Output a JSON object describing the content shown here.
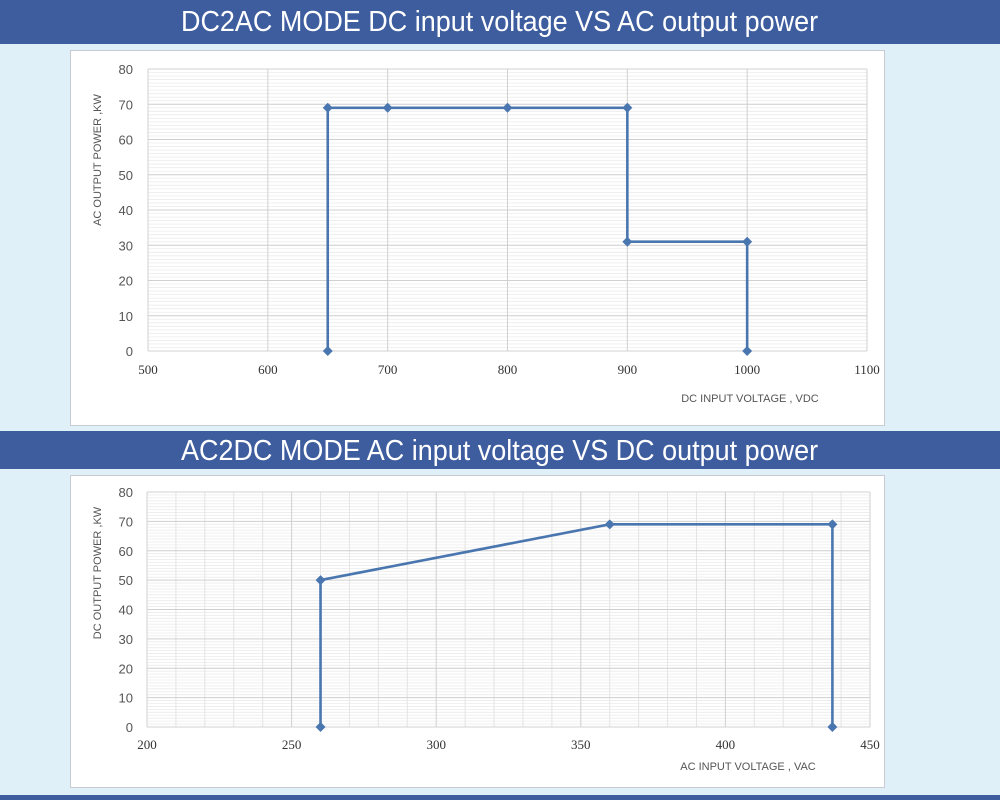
{
  "banners": {
    "top": "DC2AC MODE DC input voltage VS  AC output power",
    "bottom": "AC2DC MODE AC input voltage VS DC output power"
  },
  "colors": {
    "banner": "#3e5d9e",
    "background": "#dff0f8",
    "series": "#4a76b0",
    "grid_major": "#d0d0d0",
    "grid_minor": "#ececec"
  },
  "chart_data": [
    {
      "type": "line",
      "title": "DC2AC MODE DC input voltage VS  AC output power",
      "xlabel": "DC INPUT VOLTAGE , VDC",
      "ylabel": "AC OUTPUT POWER ,KW",
      "xlim": [
        500,
        1100
      ],
      "ylim": [
        0,
        80
      ],
      "x_ticks": [
        "500",
        "600",
        "700",
        "800",
        "900",
        "1000",
        "1100"
      ],
      "y_ticks": [
        "0",
        "10",
        "20",
        "30",
        "40",
        "50",
        "60",
        "70",
        "80"
      ],
      "grid": true,
      "series": [
        {
          "name": "AC output power",
          "marker": "diamond",
          "x": [
            650,
            650,
            700,
            800,
            900,
            900,
            1000,
            1000
          ],
          "y": [
            0,
            69,
            69,
            69,
            69,
            31,
            31,
            0
          ]
        }
      ]
    },
    {
      "type": "line",
      "title": "AC2DC MODE AC input voltage VS DC output power",
      "xlabel": "AC INPUT VOLTAGE , VAC",
      "ylabel": "DC OUTPUT POWER ,KW",
      "xlim": [
        200,
        450
      ],
      "ylim": [
        0,
        80
      ],
      "x_ticks": [
        "200",
        "250",
        "300",
        "350",
        "400",
        "450"
      ],
      "y_ticks": [
        "0",
        "10",
        "20",
        "30",
        "40",
        "50",
        "60",
        "70",
        "80"
      ],
      "grid": true,
      "series": [
        {
          "name": "DC output power",
          "marker": "diamond",
          "x": [
            260,
            260,
            360,
            437,
            437
          ],
          "y": [
            0,
            50,
            69,
            69,
            0
          ]
        }
      ]
    }
  ]
}
